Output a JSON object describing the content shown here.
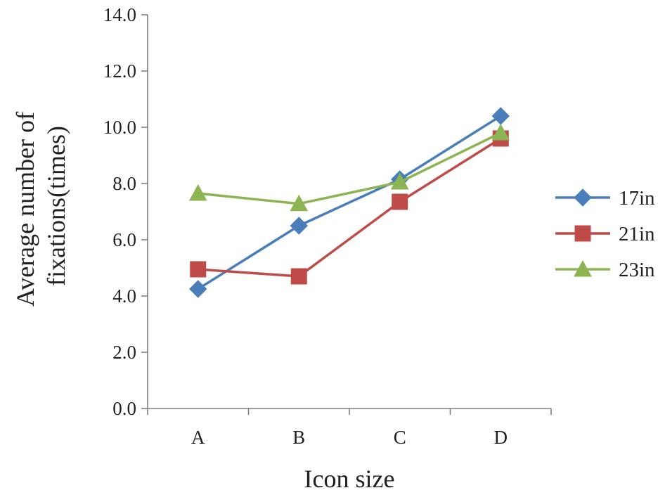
{
  "chart_data": {
    "type": "line",
    "title": "",
    "xlabel": "Icon size",
    "ylabel_lines": [
      "Average number of",
      "fixations(times)"
    ],
    "categories": [
      "A",
      "B",
      "C",
      "D"
    ],
    "ylim": [
      0,
      14
    ],
    "y_ticks": [
      "0.0",
      "2.0",
      "4.0",
      "6.0",
      "8.0",
      "10.0",
      "12.0",
      "14.0"
    ],
    "grid": false,
    "legend_position": "right",
    "series": [
      {
        "name": "17in",
        "color": "#4a7ebb",
        "marker": "diamond",
        "values": [
          4.25,
          6.5,
          8.15,
          10.4
        ]
      },
      {
        "name": "21in",
        "color": "#be4b48",
        "marker": "square",
        "values": [
          4.95,
          4.7,
          7.35,
          9.6
        ]
      },
      {
        "name": "23in",
        "color": "#8cb453",
        "marker": "triangle",
        "values": [
          7.65,
          7.28,
          8.05,
          9.8
        ]
      }
    ]
  }
}
